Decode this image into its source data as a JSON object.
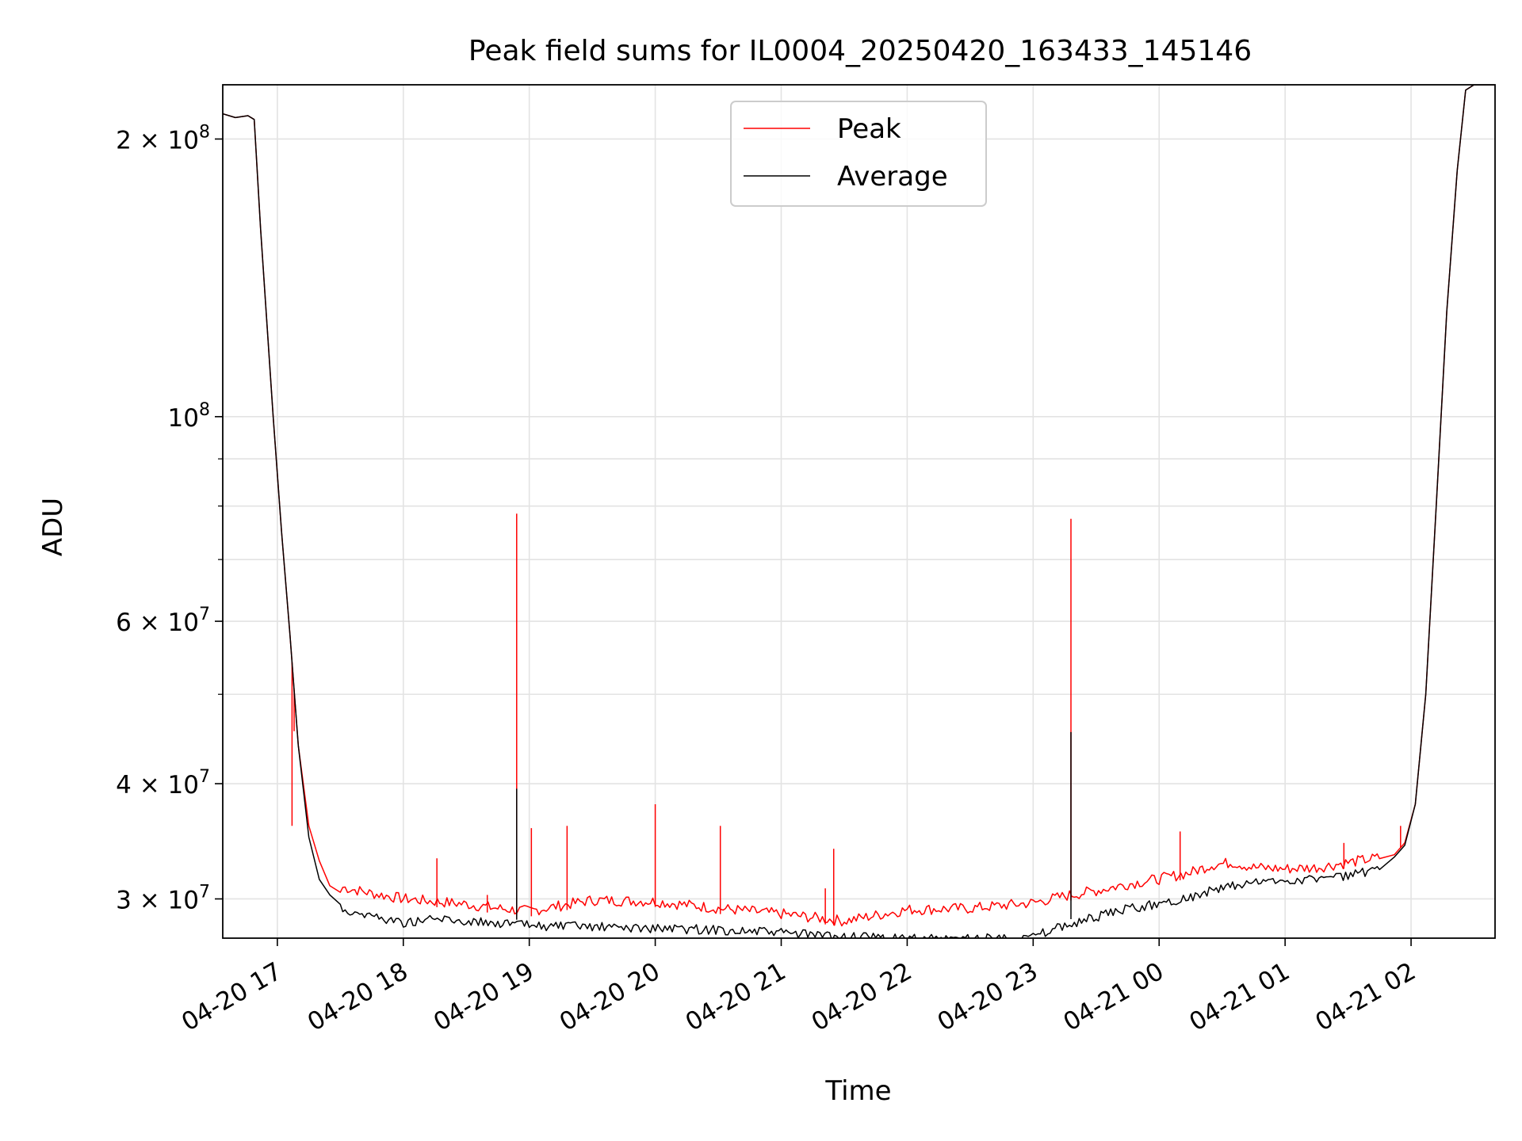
{
  "chart_data": {
    "type": "line",
    "title": "Peak field sums for IL0004_20250420_163433_145146",
    "xlabel": "Time",
    "ylabel": "ADU",
    "y_scale": "log",
    "x_range": [
      "2025-04-20 16:34",
      "2025-04-21 02:40"
    ],
    "ylim": [
      27200000,
      229000000
    ],
    "grid": true,
    "legend_position": "top-center",
    "x_ticks": [
      {
        "t": "2025-04-20 17:00",
        "label": "04-20 17"
      },
      {
        "t": "2025-04-20 18:00",
        "label": "04-20 18"
      },
      {
        "t": "2025-04-20 19:00",
        "label": "04-20 19"
      },
      {
        "t": "2025-04-20 20:00",
        "label": "04-20 20"
      },
      {
        "t": "2025-04-20 21:00",
        "label": "04-20 21"
      },
      {
        "t": "2025-04-20 22:00",
        "label": "04-20 22"
      },
      {
        "t": "2025-04-20 23:00",
        "label": "04-20 23"
      },
      {
        "t": "2025-04-21 00:00",
        "label": "04-21 00"
      },
      {
        "t": "2025-04-21 01:00",
        "label": "04-21 01"
      },
      {
        "t": "2025-04-21 02:00",
        "label": "04-21 02"
      }
    ],
    "y_major_ticks": [
      {
        "value": 30000000,
        "mantissa": "3",
        "exp": "7"
      },
      {
        "value": 40000000,
        "mantissa": "4",
        "exp": "7"
      },
      {
        "value": 60000000,
        "mantissa": "6",
        "exp": "7"
      },
      {
        "value": 100000000,
        "mantissa": "",
        "exp": "8"
      },
      {
        "value": 200000000,
        "mantissa": "2",
        "exp": "8"
      }
    ],
    "y_minor_ticks": [
      50000000,
      70000000,
      80000000,
      90000000
    ],
    "series": [
      {
        "name": "Peak",
        "color": "#ff0000",
        "points": [
          [
            "2025-04-20 16:34",
            213000000
          ],
          [
            "2025-04-20 16:40",
            211000000
          ],
          [
            "2025-04-20 16:46",
            212000000
          ],
          [
            "2025-04-20 16:49",
            210000000
          ],
          [
            "2025-04-20 16:52",
            160000000
          ],
          [
            "2025-04-20 16:58",
            100000000
          ],
          [
            "2025-04-20 17:02",
            75000000
          ],
          [
            "2025-04-20 17:06",
            58000000
          ],
          [
            "2025-04-20 17:10",
            44000000
          ],
          [
            "2025-04-20 17:15",
            36000000
          ],
          [
            "2025-04-20 17:20",
            33000000
          ],
          [
            "2025-04-20 17:25",
            31000000
          ],
          [
            "2025-04-20 17:30",
            30500000
          ],
          [
            "2025-04-20 17:45",
            30000000
          ],
          [
            "2025-04-20 18:00",
            29600000
          ],
          [
            "2025-04-20 18:15",
            29400000
          ],
          [
            "2025-04-20 18:30",
            29200000
          ],
          [
            "2025-04-20 18:45",
            28900000
          ],
          [
            "2025-04-20 19:00",
            28700000
          ],
          [
            "2025-04-20 19:30",
            29500000
          ],
          [
            "2025-04-20 20:00",
            29400000
          ],
          [
            "2025-04-20 20:30",
            28900000
          ],
          [
            "2025-04-20 21:00",
            28500000
          ],
          [
            "2025-04-20 21:30",
            28000000
          ],
          [
            "2025-04-20 22:00",
            28800000
          ],
          [
            "2025-04-20 22:30",
            28900000
          ],
          [
            "2025-04-20 23:00",
            29300000
          ],
          [
            "2025-04-20 23:15",
            29800000
          ],
          [
            "2025-04-20 23:30",
            30200000
          ],
          [
            "2025-04-20 23:45",
            30700000
          ],
          [
            "2025-04-21 00:00",
            31100000
          ],
          [
            "2025-04-21 00:15",
            31600000
          ],
          [
            "2025-04-21 00:25",
            32200000
          ],
          [
            "2025-04-21 00:35",
            32400000
          ],
          [
            "2025-04-21 00:45",
            32000000
          ],
          [
            "2025-04-21 01:00",
            31900000
          ],
          [
            "2025-04-21 01:15",
            32000000
          ],
          [
            "2025-04-21 01:30",
            32400000
          ],
          [
            "2025-04-21 01:45",
            32800000
          ],
          [
            "2025-04-21 01:52",
            33500000
          ],
          [
            "2025-04-21 01:57",
            34500000
          ],
          [
            "2025-04-21 02:02",
            38000000
          ],
          [
            "2025-04-21 02:07",
            50000000
          ],
          [
            "2025-04-21 02:12",
            80000000
          ],
          [
            "2025-04-21 02:17",
            130000000
          ],
          [
            "2025-04-21 02:22",
            185000000
          ],
          [
            "2025-04-21 02:26",
            226000000
          ],
          [
            "2025-04-21 02:30",
            229000000
          ],
          [
            "2025-04-21 02:40",
            229000000
          ]
        ],
        "spikes": [
          [
            "2025-04-20 17:08",
            45600000
          ],
          [
            "2025-04-20 17:07",
            36000000
          ],
          [
            "2025-04-20 18:16",
            33200000
          ],
          [
            "2025-04-20 18:40",
            30300000
          ],
          [
            "2025-04-20 18:54",
            78500000
          ],
          [
            "2025-04-20 19:01",
            35800000
          ],
          [
            "2025-04-20 19:18",
            36000000
          ],
          [
            "2025-04-20 20:00",
            38000000
          ],
          [
            "2025-04-20 20:31",
            36000000
          ],
          [
            "2025-04-20 21:21",
            30800000
          ],
          [
            "2025-04-20 21:25",
            34000000
          ],
          [
            "2025-04-20 23:18",
            77500000
          ],
          [
            "2025-04-21 00:10",
            35500000
          ],
          [
            "2025-04-21 01:28",
            34500000
          ],
          [
            "2025-04-21 01:55",
            36000000
          ]
        ]
      },
      {
        "name": "Average",
        "color": "#000000",
        "points": [
          [
            "2025-04-20 16:34",
            213000000
          ],
          [
            "2025-04-20 16:40",
            211000000
          ],
          [
            "2025-04-20 16:46",
            212000000
          ],
          [
            "2025-04-20 16:49",
            210000000
          ],
          [
            "2025-04-20 16:52",
            160000000
          ],
          [
            "2025-04-20 16:58",
            100000000
          ],
          [
            "2025-04-20 17:02",
            75000000
          ],
          [
            "2025-04-20 17:06",
            58000000
          ],
          [
            "2025-04-20 17:10",
            44000000
          ],
          [
            "2025-04-20 17:15",
            35000000
          ],
          [
            "2025-04-20 17:20",
            31500000
          ],
          [
            "2025-04-20 17:25",
            30300000
          ],
          [
            "2025-04-20 17:30",
            29600000
          ],
          [
            "2025-04-20 17:45",
            29100000
          ],
          [
            "2025-04-20 18:00",
            28600000
          ],
          [
            "2025-04-20 18:15",
            28900000
          ],
          [
            "2025-04-20 18:30",
            28700000
          ],
          [
            "2025-04-20 18:45",
            28600000
          ],
          [
            "2025-04-20 19:00",
            28400000
          ],
          [
            "2025-04-20 19:30",
            28300000
          ],
          [
            "2025-04-20 20:00",
            28200000
          ],
          [
            "2025-04-20 20:30",
            28100000
          ],
          [
            "2025-04-20 21:00",
            27900000
          ],
          [
            "2025-04-20 21:30",
            27600000
          ],
          [
            "2025-04-20 22:00",
            27500000
          ],
          [
            "2025-04-20 22:30",
            27500000
          ],
          [
            "2025-04-20 23:00",
            27600000
          ],
          [
            "2025-04-20 23:15",
            28400000
          ],
          [
            "2025-04-20 23:30",
            29000000
          ],
          [
            "2025-04-20 23:45",
            29600000
          ],
          [
            "2025-04-21 00:00",
            30000000
          ],
          [
            "2025-04-21 00:15",
            30500000
          ],
          [
            "2025-04-21 00:25",
            31000000
          ],
          [
            "2025-04-21 00:35",
            31300000
          ],
          [
            "2025-04-21 00:45",
            31600000
          ],
          [
            "2025-04-21 01:00",
            31800000
          ],
          [
            "2025-04-21 01:15",
            31900000
          ],
          [
            "2025-04-21 01:30",
            32200000
          ],
          [
            "2025-04-21 01:45",
            32600000
          ],
          [
            "2025-04-21 01:52",
            33300000
          ],
          [
            "2025-04-21 01:57",
            34300000
          ],
          [
            "2025-04-21 02:02",
            38000000
          ],
          [
            "2025-04-21 02:07",
            50000000
          ],
          [
            "2025-04-21 02:12",
            80000000
          ],
          [
            "2025-04-21 02:17",
            130000000
          ],
          [
            "2025-04-21 02:22",
            185000000
          ],
          [
            "2025-04-21 02:26",
            226000000
          ],
          [
            "2025-04-21 02:30",
            229000000
          ],
          [
            "2025-04-21 02:40",
            229000000
          ]
        ],
        "spikes": [
          [
            "2025-04-20 18:54",
            39500000
          ],
          [
            "2025-04-20 23:18",
            45500000
          ]
        ]
      }
    ]
  }
}
